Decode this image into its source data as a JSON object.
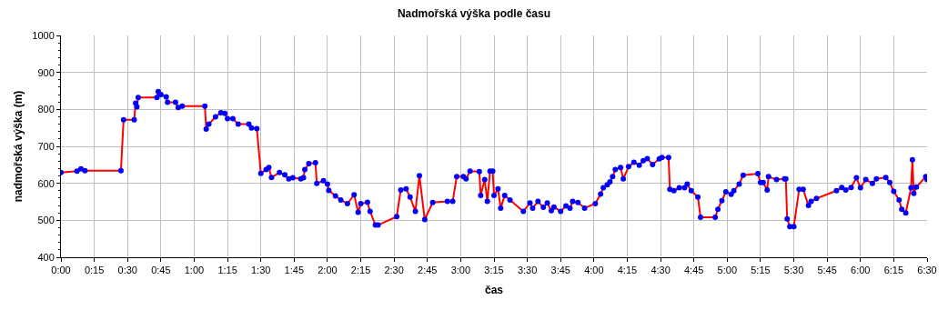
{
  "chart_data": {
    "type": "line",
    "title": "Nadmořská výška podle času",
    "xlabel": "čas",
    "ylabel": "nadmořská výška (m)",
    "x": [
      0,
      0.12,
      0.15,
      0.18,
      0.45,
      0.47,
      0.55,
      0.56,
      0.57,
      0.58,
      0.72,
      0.73,
      0.75,
      0.79,
      0.8,
      0.86,
      0.88,
      0.91,
      1.08,
      1.09,
      1.11,
      1.16,
      1.2,
      1.23,
      1.25,
      1.29,
      1.33,
      1.41,
      1.43,
      1.47,
      1.5,
      1.54,
      1.56,
      1.58,
      1.64,
      1.68,
      1.71,
      1.74,
      1.8,
      1.82,
      1.83,
      1.86,
      1.91,
      1.92,
      1.97,
      2.0,
      2.01,
      2.06,
      2.1,
      2.15,
      2.2,
      2.23,
      2.25,
      2.3,
      2.32,
      2.36,
      2.38,
      2.52,
      2.55,
      2.59,
      2.62,
      2.66,
      2.69,
      2.73,
      2.79,
      2.9,
      2.94,
      2.97,
      3.02,
      3.04,
      3.07,
      3.14,
      3.15,
      3.18,
      3.2,
      3.22,
      3.24,
      3.25,
      3.28,
      3.3,
      3.33,
      3.37,
      3.47,
      3.52,
      3.54,
      3.58,
      3.62,
      3.65,
      3.68,
      3.7,
      3.75,
      3.79,
      3.82,
      3.84,
      3.88,
      3.93,
      4.01,
      4.05,
      4.07,
      4.1,
      4.12,
      4.14,
      4.16,
      4.2,
      4.22,
      4.26,
      4.3,
      4.34,
      4.37,
      4.4,
      4.44,
      4.49,
      4.51,
      4.56,
      4.57,
      4.6,
      4.64,
      4.68,
      4.7,
      4.73,
      4.78,
      4.8,
      4.91,
      4.93,
      4.96,
      4.99,
      5.03,
      5.05,
      5.09,
      5.12,
      5.23,
      5.25,
      5.27,
      5.3,
      5.31,
      5.37,
      5.43,
      5.44,
      5.45,
      5.47,
      5.5,
      5.54,
      5.57,
      5.61,
      5.63,
      5.67,
      5.82,
      5.86,
      5.89,
      5.93,
      5.97,
      6.0,
      6.04,
      6.09,
      6.12,
      6.19,
      6.22,
      6.25,
      6.29,
      6.31,
      6.34,
      6.38,
      6.39,
      6.4,
      6.42,
      6.49,
      6.5
    ],
    "series": [
      {
        "color": "#ff0000",
        "colors": [
          "#0000ff",
          "#0000ff",
          "#0000ff",
          "#0000ff",
          "#0000ff",
          "#0000ff",
          "#0000ff",
          "#0000ff",
          "#0000ff",
          "#0000ff",
          "#0000ff",
          "#0000ff",
          "#0000ff",
          "#0000ff",
          "#0000ff",
          "#0000ff",
          "#0000ff",
          "#0000ff",
          "#0000ff",
          "#0000ff",
          "#0000ff",
          "#0000ff",
          "#0000ff",
          "#0000ff",
          "#0000ff",
          "#0000ff",
          "#0000ff",
          "#0000ff",
          "#0000ff",
          "#0000ff",
          "#0000ff",
          "#0000ff",
          "#0000ff",
          "#0000ff",
          "#0000ff",
          "#0000ff",
          "#0000ff",
          "#0000ff",
          "#0000ff",
          "#0000ff",
          "#0000ff",
          "#0000ff",
          "#0000ff",
          "#0000ff",
          "#0000ff",
          "#0000ff",
          "#0000ff",
          "#0000ff",
          "#0000ff",
          "#0000ff",
          "#0000ff",
          "#0000ff",
          "#0000ff",
          "#0000ff",
          "#0000ff",
          "#0000ff",
          "#0000ff",
          "#0000ff",
          "#0000ff",
          "#0000ff",
          "#0000ff",
          "#0000ff",
          "#0000ff",
          "#0000ff",
          "#0000ff",
          "#0000ff",
          "#0000ff",
          "#0000ff",
          "#0000ff",
          "#0000ff",
          "#0000ff",
          "#0000ff",
          "#0000ff",
          "#0000ff",
          "#0000ff",
          "#0000ff",
          "#0000ff",
          "#0000ff",
          "#0000ff",
          "#0000ff",
          "#0000ff",
          "#0000ff",
          "#0000ff",
          "#0000ff",
          "#0000ff",
          "#0000ff",
          "#0000ff",
          "#0000ff",
          "#0000ff",
          "#0000ff",
          "#0000ff",
          "#0000ff",
          "#0000ff",
          "#0000ff",
          "#0000ff",
          "#0000ff",
          "#0000ff",
          "#0000ff",
          "#0000ff",
          "#0000ff",
          "#0000ff",
          "#0000ff",
          "#0000ff",
          "#0000ff",
          "#0000ff",
          "#0000ff",
          "#0000ff",
          "#0000ff",
          "#0000ff",
          "#0000ff",
          "#0000ff",
          "#0000ff",
          "#0000ff",
          "#0000ff",
          "#0000ff",
          "#0000ff",
          "#0000ff",
          "#0000ff",
          "#0000ff",
          "#0000ff",
          "#0000ff",
          "#0000ff",
          "#0000ff",
          "#0000ff",
          "#0000ff",
          "#0000ff",
          "#0000ff",
          "#0000ff",
          "#0000ff",
          "#0000ff",
          "#0000ff",
          "#0000ff",
          "#0000ff",
          "#0000ff",
          "#0000ff",
          "#0000ff",
          "#0000ff",
          "#0000ff",
          "#0000ff",
          "#0000ff",
          "#0000ff",
          "#0000ff",
          "#0000ff",
          "#0000ff",
          "#0000ff",
          "#0000ff",
          "#0000ff",
          "#0000ff",
          "#0000ff",
          "#0000ff",
          "#0000ff",
          "#0000ff",
          "#0000ff",
          "#0000ff",
          "#0000ff",
          "#0000ff",
          "#0000ff",
          "#0000ff",
          "#0000ff",
          "#0000ff",
          "#0000ff",
          "#0000ff",
          "#0000ff",
          "#0000ff",
          "#0000ff",
          "#0000ff",
          "#0000ff"
        ],
        "values": [
          629,
          633,
          639,
          634,
          634,
          772,
          772,
          817,
          807,
          832,
          832,
          848,
          840,
          834,
          819,
          819,
          805,
          809,
          809,
          747,
          760,
          780,
          791,
          789,
          775,
          775,
          760,
          760,
          750,
          748,
          627,
          637,
          643,
          616,
          629,
          623,
          612,
          615,
          612,
          615,
          637,
          653,
          656,
          600,
          607,
          598,
          581,
          566,
          555,
          545,
          569,
          522,
          545,
          549,
          524,
          487,
          487,
          510,
          582,
          585,
          563,
          524,
          621,
          502,
          548,
          551,
          551,
          618,
          618,
          612,
          633,
          632,
          567,
          610,
          551,
          633,
          633,
          567,
          585,
          533,
          567,
          555,
          524,
          547,
          533,
          551,
          535,
          547,
          526,
          536,
          524,
          539,
          533,
          551,
          548,
          533,
          545,
          571,
          588,
          596,
          604,
          618,
          637,
          643,
          612,
          645,
          657,
          649,
          661,
          667,
          651,
          666,
          670,
          670,
          584,
          580,
          588,
          588,
          598,
          580,
          563,
          508,
          508,
          530,
          553,
          577,
          570,
          580,
          598,
          622,
          626,
          602,
          602,
          582,
          618,
          610,
          612,
          612,
          504,
          483,
          483,
          584,
          584,
          540,
          551,
          559,
          580,
          589,
          582,
          589,
          615,
          588,
          610,
          600,
          612,
          616,
          602,
          578,
          555,
          530,
          520,
          588,
          664,
          573,
          590,
          618,
          610
        ]
      }
    ],
    "xlim": [
      0,
      6.5
    ],
    "xticks": [
      {
        "value": 0,
        "label": "0:00"
      },
      {
        "value": 0.25,
        "label": "0:15"
      },
      {
        "value": 0.5,
        "label": "0:30"
      },
      {
        "value": 0.75,
        "label": "0:45"
      },
      {
        "value": 1,
        "label": "1:00"
      },
      {
        "value": 1.25,
        "label": "1:15"
      },
      {
        "value": 1.5,
        "label": "1:30"
      },
      {
        "value": 1.75,
        "label": "1:45"
      },
      {
        "value": 2,
        "label": "2:00"
      },
      {
        "value": 2.25,
        "label": "2:15"
      },
      {
        "value": 2.5,
        "label": "2:30"
      },
      {
        "value": 2.75,
        "label": "2:45"
      },
      {
        "value": 3,
        "label": "3:00"
      },
      {
        "value": 3.25,
        "label": "3:15"
      },
      {
        "value": 3.5,
        "label": "3:30"
      },
      {
        "value": 3.75,
        "label": "3:45"
      },
      {
        "value": 4,
        "label": "4:00"
      },
      {
        "value": 4.25,
        "label": "4:15"
      },
      {
        "value": 4.5,
        "label": "4:30"
      },
      {
        "value": 4.75,
        "label": "4:45"
      },
      {
        "value": 5,
        "label": "5:00"
      },
      {
        "value": 5.25,
        "label": "5:15"
      },
      {
        "value": 5.5,
        "label": "5:30"
      },
      {
        "value": 5.75,
        "label": "5:45"
      },
      {
        "value": 6,
        "label": "6:00"
      },
      {
        "value": 6.25,
        "label": "6:15"
      },
      {
        "value": 6.5,
        "label": "6:30"
      }
    ],
    "ylim": [
      400,
      1000
    ],
    "yticks": [
      400,
      500,
      600,
      700,
      800,
      900,
      1000
    ],
    "grid": true,
    "marker": "circle",
    "line_style": "solid"
  }
}
